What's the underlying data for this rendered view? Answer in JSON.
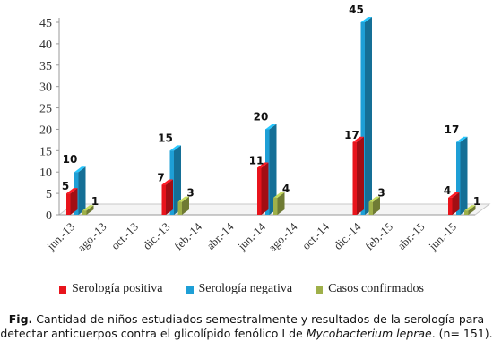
{
  "chart_data": {
    "type": "bar",
    "categories": [
      "jun.-13",
      "ago.-13",
      "oct.-13",
      "dic.-13",
      "feb.-14",
      "abr.-14",
      "jun.-14",
      "ago.-14",
      "oct.-14",
      "dic.-14",
      "feb.-15",
      "abr.-15",
      "jun.-15"
    ],
    "series": [
      {
        "name": "Serología positiva",
        "color": "#e8141c",
        "values": [
          5,
          null,
          null,
          7,
          null,
          null,
          11,
          null,
          null,
          17,
          null,
          null,
          4
        ]
      },
      {
        "name": "Serología negativa",
        "color": "#1e9fd6",
        "values": [
          10,
          null,
          null,
          15,
          null,
          null,
          20,
          null,
          null,
          45,
          null,
          null,
          17
        ]
      },
      {
        "name": "Casos confirmados",
        "color": "#9fb04a",
        "values": [
          1,
          null,
          null,
          3,
          null,
          null,
          4,
          null,
          null,
          3,
          null,
          null,
          1
        ]
      }
    ],
    "yticks": [
      0,
      5,
      10,
      15,
      20,
      25,
      30,
      35,
      40,
      45
    ],
    "ylim": [
      0,
      45
    ],
    "legend_position": "bottom",
    "grid": false
  },
  "caption": {
    "prefix": "Fig.",
    "text_before": " Cantidad de niños estudiados semestralmente y resultados de la serología para detectar anticuerpos contra el glicolípido fenólico I de ",
    "italic": "Mycobacterium leprae",
    "text_after": ". (n= 151)."
  }
}
